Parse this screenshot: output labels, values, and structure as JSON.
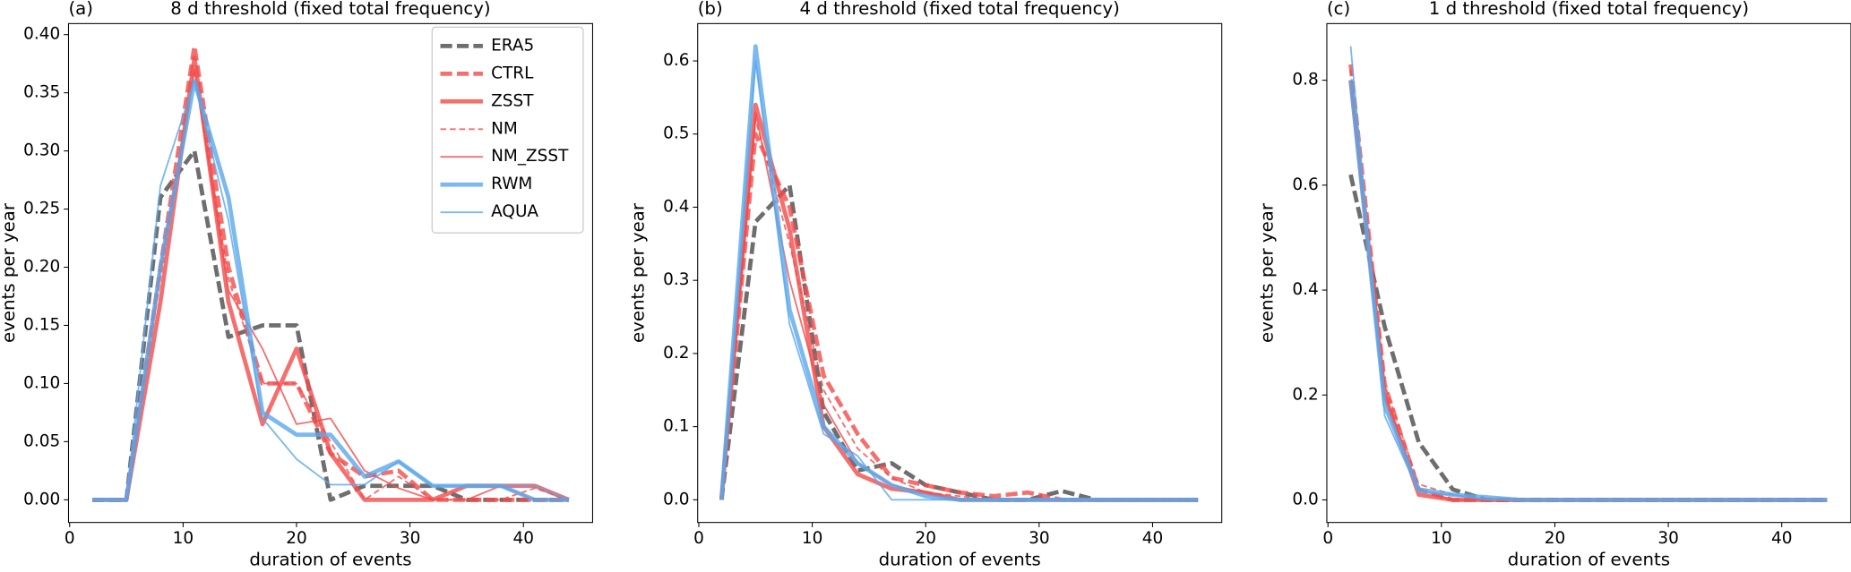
{
  "chart_data": [
    {
      "type": "line",
      "panel_label": "(a)",
      "title": "8 d threshold (fixed total frequency)",
      "xlabel": "duration of events",
      "ylabel": "events per year",
      "x": [
        2,
        5,
        8,
        11,
        14,
        17,
        20,
        23,
        26,
        29,
        32,
        35,
        38,
        41,
        44
      ],
      "xlim": [
        -0.1,
        46.1
      ],
      "xticks": [
        0,
        10,
        20,
        30,
        40
      ],
      "ylim": [
        -0.0195,
        0.4095
      ],
      "yticks": [
        {
          "value": 0,
          "label": "0.00"
        },
        {
          "value": 0.05,
          "label": "0.05"
        },
        {
          "value": 0.1,
          "label": "0.10"
        },
        {
          "value": 0.15,
          "label": "0.15"
        },
        {
          "value": 0.2,
          "label": "0.20"
        },
        {
          "value": 0.25,
          "label": "0.25"
        },
        {
          "value": 0.3,
          "label": "0.30"
        },
        {
          "value": 0.35,
          "label": "0.35"
        },
        {
          "value": 0.4,
          "label": "0.40"
        }
      ],
      "legend": "upper right",
      "series": [
        {
          "name": "ERA5",
          "color": "#4a4a4a",
          "linestyle": "dashed",
          "linewidth": "thick",
          "values": [
            0,
            0,
            0.26,
            0.3,
            0.14,
            0.15,
            0.15,
            0,
            0.012,
            0.012,
            0.012,
            0,
            0,
            0,
            0
          ]
        },
        {
          "name": "CTRL",
          "color": "#f24b4b",
          "linestyle": "dashed",
          "linewidth": "thick",
          "values": [
            0,
            0,
            0.2,
            0.39,
            0.2,
            0.1,
            0.1,
            0.04,
            0.02,
            0.025,
            0,
            0,
            0,
            0,
            0
          ]
        },
        {
          "name": "ZSST",
          "color": "#f24b4b",
          "linestyle": "solid",
          "linewidth": "thick",
          "values": [
            0,
            0,
            0.17,
            0.38,
            0.17,
            0.065,
            0.13,
            0.04,
            0,
            0,
            0,
            0.012,
            0.012,
            0.012,
            0
          ]
        },
        {
          "name": "NM",
          "color": "#f24b4b",
          "linestyle": "dashed",
          "linewidth": "thin",
          "values": [
            0,
            0,
            0.19,
            0.37,
            0.19,
            0.1,
            0.1,
            0.05,
            0,
            0.02,
            0,
            0,
            0,
            0.01,
            0
          ]
        },
        {
          "name": "NM_ZSST",
          "color": "#f24b4b",
          "linestyle": "solid",
          "linewidth": "thin",
          "values": [
            0,
            0,
            0.2,
            0.37,
            0.18,
            0.13,
            0.065,
            0.07,
            0.025,
            0.01,
            0,
            0,
            0.012,
            0,
            0
          ]
        },
        {
          "name": "RWM",
          "color": "#5aa7ea",
          "linestyle": "solid",
          "linewidth": "thick",
          "values": [
            0,
            0,
            0.2,
            0.36,
            0.26,
            0.075,
            0.056,
            0.056,
            0.02,
            0.033,
            0.012,
            0.012,
            0.012,
            0,
            0
          ]
        },
        {
          "name": "AQUA",
          "color": "#5aa7ea",
          "linestyle": "solid",
          "linewidth": "thin",
          "values": [
            0,
            0,
            0.27,
            0.36,
            0.24,
            0.07,
            0.035,
            0.013,
            0.013,
            0.033,
            0.012,
            0.012,
            0.012,
            0.012,
            0
          ]
        }
      ]
    },
    {
      "type": "line",
      "panel_label": "(b)",
      "title": "4 d threshold (fixed total frequency)",
      "xlabel": "duration of events",
      "ylabel": "events per year",
      "x": [
        2,
        5,
        8,
        11,
        14,
        17,
        20,
        23,
        26,
        29,
        32,
        35,
        38,
        41,
        44
      ],
      "xlim": [
        -0.1,
        46.1
      ],
      "xticks": [
        0,
        10,
        20,
        30,
        40
      ],
      "ylim": [
        -0.031,
        0.651
      ],
      "yticks": [
        {
          "value": 0,
          "label": "0.0"
        },
        {
          "value": 0.1,
          "label": "0.1"
        },
        {
          "value": 0.2,
          "label": "0.2"
        },
        {
          "value": 0.3,
          "label": "0.3"
        },
        {
          "value": 0.4,
          "label": "0.4"
        },
        {
          "value": 0.5,
          "label": "0.5"
        },
        {
          "value": 0.6,
          "label": "0.6"
        }
      ],
      "series": [
        {
          "name": "ERA5",
          "color": "#4a4a4a",
          "linestyle": "dashed",
          "linewidth": "thick",
          "values": [
            0,
            0.38,
            0.43,
            0.12,
            0.04,
            0.05,
            0.02,
            0.01,
            0,
            0,
            0.012,
            0,
            0,
            0,
            0
          ]
        },
        {
          "name": "CTRL",
          "color": "#f24b4b",
          "linestyle": "dashed",
          "linewidth": "thick",
          "values": [
            0,
            0.5,
            0.4,
            0.17,
            0.09,
            0.03,
            0.02,
            0.01,
            0.005,
            0.01,
            0,
            0,
            0,
            0,
            0
          ]
        },
        {
          "name": "ZSST",
          "color": "#f24b4b",
          "linestyle": "solid",
          "linewidth": "thick",
          "values": [
            0,
            0.54,
            0.37,
            0.1,
            0.035,
            0.015,
            0.01,
            0,
            0,
            0,
            0,
            0,
            0,
            0,
            0
          ]
        },
        {
          "name": "NM",
          "color": "#f24b4b",
          "linestyle": "dashed",
          "linewidth": "thin",
          "values": [
            0,
            0.52,
            0.35,
            0.15,
            0.07,
            0.03,
            0.01,
            0.005,
            0,
            0,
            0,
            0,
            0,
            0,
            0
          ]
        },
        {
          "name": "NM_ZSST",
          "color": "#f24b4b",
          "linestyle": "solid",
          "linewidth": "thin",
          "values": [
            0,
            0.53,
            0.3,
            0.13,
            0.05,
            0.02,
            0.01,
            0,
            0,
            0,
            0,
            0,
            0,
            0,
            0
          ]
        },
        {
          "name": "RWM",
          "color": "#5aa7ea",
          "linestyle": "solid",
          "linewidth": "thick",
          "values": [
            0,
            0.62,
            0.26,
            0.1,
            0.05,
            0.02,
            0.005,
            0,
            0,
            0,
            0,
            0,
            0,
            0,
            0
          ]
        },
        {
          "name": "AQUA",
          "color": "#5aa7ea",
          "linestyle": "solid",
          "linewidth": "thin",
          "values": [
            0,
            0.6,
            0.24,
            0.09,
            0.06,
            0,
            0,
            0,
            0,
            0,
            0,
            0,
            0,
            0,
            0
          ]
        }
      ]
    },
    {
      "type": "line",
      "panel_label": "(c)",
      "title": "1 d threshold (fixed total frequency)",
      "xlabel": "duration of events",
      "ylabel": "events per year",
      "x": [
        2,
        5,
        8,
        11,
        14,
        17,
        20,
        23,
        26,
        29,
        32,
        35,
        38,
        41,
        44
      ],
      "xlim": [
        -0.1,
        46.1
      ],
      "xticks": [
        0,
        10,
        20,
        30,
        40
      ],
      "ylim": [
        -0.043,
        0.908
      ],
      "yticks": [
        {
          "value": 0,
          "label": "0.0"
        },
        {
          "value": 0.2,
          "label": "0.2"
        },
        {
          "value": 0.4,
          "label": "0.4"
        },
        {
          "value": 0.6,
          "label": "0.6"
        },
        {
          "value": 0.8,
          "label": "0.8"
        }
      ],
      "series": [
        {
          "name": "ERA5",
          "color": "#4a4a4a",
          "linestyle": "dashed",
          "linewidth": "thick",
          "values": [
            0.62,
            0.33,
            0.11,
            0.02,
            0,
            0,
            0,
            0,
            0,
            0,
            0,
            0,
            0,
            0,
            0
          ]
        },
        {
          "name": "CTRL",
          "color": "#f24b4b",
          "linestyle": "dashed",
          "linewidth": "thick",
          "values": [
            0.83,
            0.22,
            0.02,
            0,
            0,
            0,
            0,
            0,
            0,
            0,
            0,
            0,
            0,
            0,
            0
          ]
        },
        {
          "name": "ZSST",
          "color": "#f24b4b",
          "linestyle": "solid",
          "linewidth": "thick",
          "values": [
            0.8,
            0.2,
            0.01,
            0,
            0,
            0,
            0,
            0,
            0,
            0,
            0,
            0,
            0,
            0,
            0
          ]
        },
        {
          "name": "NM",
          "color": "#f24b4b",
          "linestyle": "dashed",
          "linewidth": "thin",
          "values": [
            0.82,
            0.22,
            0.03,
            0.01,
            0,
            0,
            0,
            0,
            0,
            0,
            0,
            0,
            0,
            0,
            0
          ]
        },
        {
          "name": "NM_ZSST",
          "color": "#f24b4b",
          "linestyle": "solid",
          "linewidth": "thin",
          "values": [
            0.8,
            0.2,
            0.02,
            0,
            0,
            0,
            0,
            0,
            0,
            0,
            0,
            0,
            0,
            0,
            0
          ]
        },
        {
          "name": "RWM",
          "color": "#5aa7ea",
          "linestyle": "solid",
          "linewidth": "thick",
          "values": [
            0.8,
            0.18,
            0.02,
            0.01,
            0.005,
            0,
            0,
            0,
            0,
            0,
            0,
            0,
            0,
            0,
            0
          ]
        },
        {
          "name": "AQUA",
          "color": "#5aa7ea",
          "linestyle": "solid",
          "linewidth": "thin",
          "values": [
            0.865,
            0.16,
            0.015,
            0.01,
            0,
            0,
            0,
            0,
            0,
            0,
            0,
            0,
            0,
            0,
            0
          ]
        }
      ]
    }
  ]
}
